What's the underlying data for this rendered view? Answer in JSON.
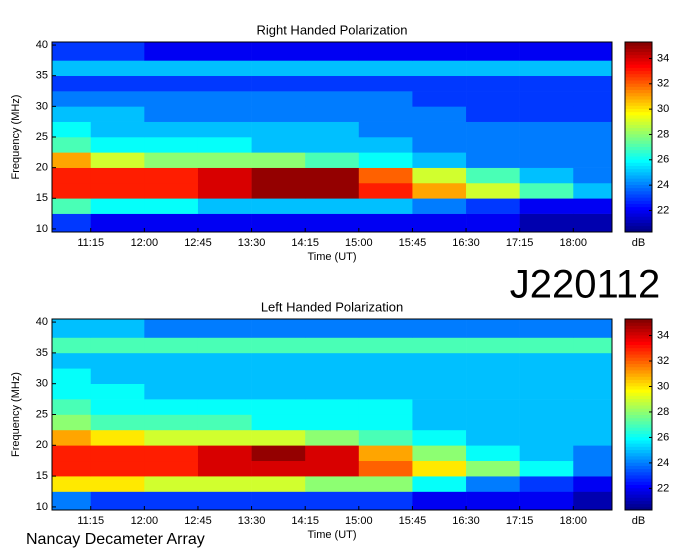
{
  "header": {
    "id": "J220112"
  },
  "footer": {
    "credit": "Nancay Decameter Array"
  },
  "chart_data": [
    {
      "type": "heatmap",
      "title": "Right Handed Polarization",
      "x_label": "Time (UT)",
      "y_label": "Frequency (MHz)",
      "colormap": "jet",
      "colorbar_label": "dB",
      "xlim": [
        642.5,
        1112.5
      ],
      "ylim": [
        9.5,
        40.5
      ],
      "zlim": [
        20.3,
        35.3
      ],
      "xticks": [
        {
          "value": 675,
          "label": "11:15"
        },
        {
          "value": 720,
          "label": "12:00"
        },
        {
          "value": 765,
          "label": "12:45"
        },
        {
          "value": 810,
          "label": "13:30"
        },
        {
          "value": 855,
          "label": "14:15"
        },
        {
          "value": 900,
          "label": "15:00"
        },
        {
          "value": 945,
          "label": "15:45"
        },
        {
          "value": 990,
          "label": "16:30"
        },
        {
          "value": 1035,
          "label": "17:15"
        },
        {
          "value": 1080,
          "label": "18:00"
        }
      ],
      "yticks": [
        10,
        15,
        20,
        25,
        30,
        35,
        40
      ],
      "zticks": [
        22,
        24,
        26,
        28,
        30,
        32,
        34
      ],
      "x_bins": [
        642.5,
        675,
        720,
        765,
        810,
        855,
        900,
        945,
        990,
        1035,
        1080,
        1112.5
      ],
      "y_bins": [
        9.5,
        12.5,
        15,
        17.5,
        20,
        22.5,
        25,
        27.5,
        30,
        32.5,
        35,
        37.5,
        40.5
      ],
      "z": [
        [
          23,
          22,
          22,
          22,
          22,
          22,
          22,
          22,
          22,
          21,
          21
        ],
        [
          27,
          26,
          26,
          25,
          25,
          25,
          25,
          24,
          23,
          22,
          22
        ],
        [
          33,
          33,
          33,
          34,
          35,
          35,
          33,
          31,
          29,
          27,
          25
        ],
        [
          33,
          33,
          33,
          34,
          35,
          35,
          32,
          29,
          27,
          25,
          24
        ],
        [
          31,
          29,
          28,
          28,
          28,
          27,
          26,
          25,
          24,
          24,
          24
        ],
        [
          27,
          26,
          26,
          26,
          25,
          25,
          25,
          24,
          24,
          24,
          24
        ],
        [
          26,
          25,
          25,
          25,
          25,
          25,
          24,
          24,
          24,
          24,
          24
        ],
        [
          25,
          25,
          24,
          24,
          24,
          24,
          24,
          24,
          23,
          23,
          23
        ],
        [
          24,
          24,
          24,
          24,
          24,
          24,
          24,
          23,
          23,
          23,
          23
        ],
        [
          23,
          23,
          23,
          23,
          23,
          23,
          23,
          23,
          23,
          23,
          23
        ],
        [
          25,
          25,
          25,
          25,
          25,
          25,
          25,
          25,
          25,
          25,
          25
        ],
        [
          23,
          23,
          22,
          22,
          22,
          22,
          22,
          22,
          22,
          22,
          22
        ]
      ]
    },
    {
      "type": "heatmap",
      "title": "Left Handed Polarization",
      "x_label": "Time (UT)",
      "y_label": "Frequency (MHz)",
      "colormap": "jet",
      "colorbar_label": "dB",
      "xlim": [
        642.5,
        1112.5
      ],
      "ylim": [
        9.5,
        40.5
      ],
      "zlim": [
        20.3,
        35.3
      ],
      "xticks": [
        {
          "value": 675,
          "label": "11:15"
        },
        {
          "value": 720,
          "label": "12:00"
        },
        {
          "value": 765,
          "label": "12:45"
        },
        {
          "value": 810,
          "label": "13:30"
        },
        {
          "value": 855,
          "label": "14:15"
        },
        {
          "value": 900,
          "label": "15:00"
        },
        {
          "value": 945,
          "label": "15:45"
        },
        {
          "value": 990,
          "label": "16:30"
        },
        {
          "value": 1035,
          "label": "17:15"
        },
        {
          "value": 1080,
          "label": "18:00"
        }
      ],
      "yticks": [
        10,
        15,
        20,
        25,
        30,
        35,
        40
      ],
      "zticks": [
        22,
        24,
        26,
        28,
        30,
        32,
        34
      ],
      "x_bins": [
        642.5,
        675,
        720,
        765,
        810,
        855,
        900,
        945,
        990,
        1035,
        1080,
        1112.5
      ],
      "y_bins": [
        9.5,
        12.5,
        15,
        17.5,
        20,
        22.5,
        25,
        27.5,
        30,
        32.5,
        35,
        37.5,
        40.5
      ],
      "z": [
        [
          24,
          23,
          23,
          23,
          23,
          23,
          23,
          22,
          22,
          22,
          21
        ],
        [
          30,
          30,
          29,
          29,
          29,
          28,
          28,
          26,
          24,
          23,
          22
        ],
        [
          33,
          33,
          33,
          34,
          34,
          34,
          32,
          30,
          28,
          26,
          24
        ],
        [
          33,
          33,
          33,
          34,
          35,
          34,
          31,
          28,
          26,
          25,
          24
        ],
        [
          31,
          30,
          29,
          29,
          29,
          28,
          27,
          26,
          25,
          25,
          25
        ],
        [
          28,
          27,
          27,
          27,
          26,
          26,
          26,
          25,
          25,
          25,
          25
        ],
        [
          27,
          26,
          26,
          26,
          26,
          26,
          26,
          25,
          25,
          25,
          25
        ],
        [
          26,
          26,
          25,
          25,
          25,
          25,
          25,
          25,
          25,
          25,
          25
        ],
        [
          26,
          25,
          25,
          25,
          25,
          25,
          25,
          25,
          25,
          25,
          25
        ],
        [
          25,
          25,
          25,
          25,
          25,
          25,
          25,
          25,
          25,
          25,
          25
        ],
        [
          27,
          27,
          27,
          27,
          27,
          27,
          27,
          27,
          27,
          27,
          27
        ],
        [
          25,
          25,
          24,
          24,
          24,
          24,
          24,
          24,
          24,
          24,
          24
        ]
      ]
    }
  ]
}
